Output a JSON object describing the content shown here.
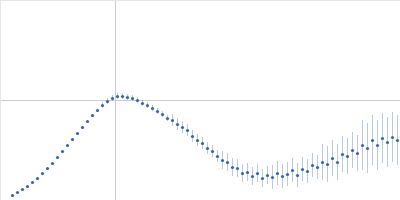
{
  "chart_data": {
    "type": "scatter",
    "x": [
      0.12,
      0.17,
      0.22,
      0.27,
      0.32,
      0.37,
      0.42,
      0.47,
      0.52,
      0.57,
      0.62,
      0.67,
      0.72,
      0.77,
      0.82,
      0.87,
      0.92,
      0.97,
      1.02,
      1.07,
      1.12,
      1.17,
      1.22,
      1.27,
      1.32,
      1.37,
      1.42,
      1.47,
      1.52,
      1.57,
      1.62,
      1.67,
      1.72,
      1.77,
      1.82,
      1.87,
      1.92,
      1.97,
      2.02,
      2.07,
      2.12,
      2.17,
      2.22,
      2.27,
      2.32,
      2.37,
      2.42,
      2.47,
      2.52,
      2.57,
      2.62,
      2.67,
      2.72,
      2.77,
      2.82,
      2.87,
      2.92,
      2.97,
      3.02,
      3.07,
      3.12,
      3.17,
      3.22,
      3.27,
      3.32,
      3.37,
      3.42,
      3.47,
      3.52,
      3.57,
      3.62,
      3.67,
      3.72,
      3.77,
      3.82,
      3.87,
      3.92,
      3.97
    ],
    "values": [
      0.05,
      0.08,
      0.11,
      0.14,
      0.18,
      0.22,
      0.27,
      0.32,
      0.37,
      0.43,
      0.49,
      0.55,
      0.61,
      0.67,
      0.73,
      0.79,
      0.85,
      0.9,
      0.95,
      0.99,
      1.02,
      1.04,
      1.04,
      1.03,
      1.02,
      1.0,
      0.97,
      0.95,
      0.92,
      0.89,
      0.86,
      0.82,
      0.8,
      0.76,
      0.73,
      0.7,
      0.64,
      0.6,
      0.57,
      0.52,
      0.49,
      0.44,
      0.4,
      0.38,
      0.33,
      0.32,
      0.27,
      0.28,
      0.24,
      0.27,
      0.22,
      0.25,
      0.23,
      0.27,
      0.24,
      0.26,
      0.3,
      0.25,
      0.31,
      0.29,
      0.35,
      0.33,
      0.38,
      0.36,
      0.42,
      0.38,
      0.46,
      0.44,
      0.5,
      0.47,
      0.55,
      0.52,
      0.6,
      0.55,
      0.62,
      0.58,
      0.63,
      0.6
    ],
    "errors": [
      0.01,
      0.01,
      0.01,
      0.01,
      0.01,
      0.01,
      0.01,
      0.01,
      0.01,
      0.01,
      0.01,
      0.01,
      0.01,
      0.01,
      0.01,
      0.01,
      0.01,
      0.01,
      0.03,
      0.03,
      0.03,
      0.03,
      0.03,
      0.03,
      0.03,
      0.03,
      0.03,
      0.03,
      0.03,
      0.03,
      0.03,
      0.03,
      0.06,
      0.06,
      0.06,
      0.06,
      0.06,
      0.06,
      0.06,
      0.06,
      0.06,
      0.06,
      0.09,
      0.09,
      0.09,
      0.09,
      0.09,
      0.09,
      0.09,
      0.09,
      0.09,
      0.09,
      0.12,
      0.12,
      0.12,
      0.12,
      0.12,
      0.12,
      0.12,
      0.12,
      0.12,
      0.12,
      0.18,
      0.18,
      0.18,
      0.18,
      0.18,
      0.18,
      0.18,
      0.18,
      0.25,
      0.25,
      0.25,
      0.25,
      0.25,
      0.25,
      0.25,
      0.25
    ],
    "color": "#3a63b5",
    "xlim": [
      0,
      4
    ],
    "ylim": [
      0,
      2
    ],
    "xticks": [
      1.15
    ],
    "yticks": [
      1.0
    ],
    "grid": true,
    "tick_labels": false,
    "marker": "circle"
  }
}
